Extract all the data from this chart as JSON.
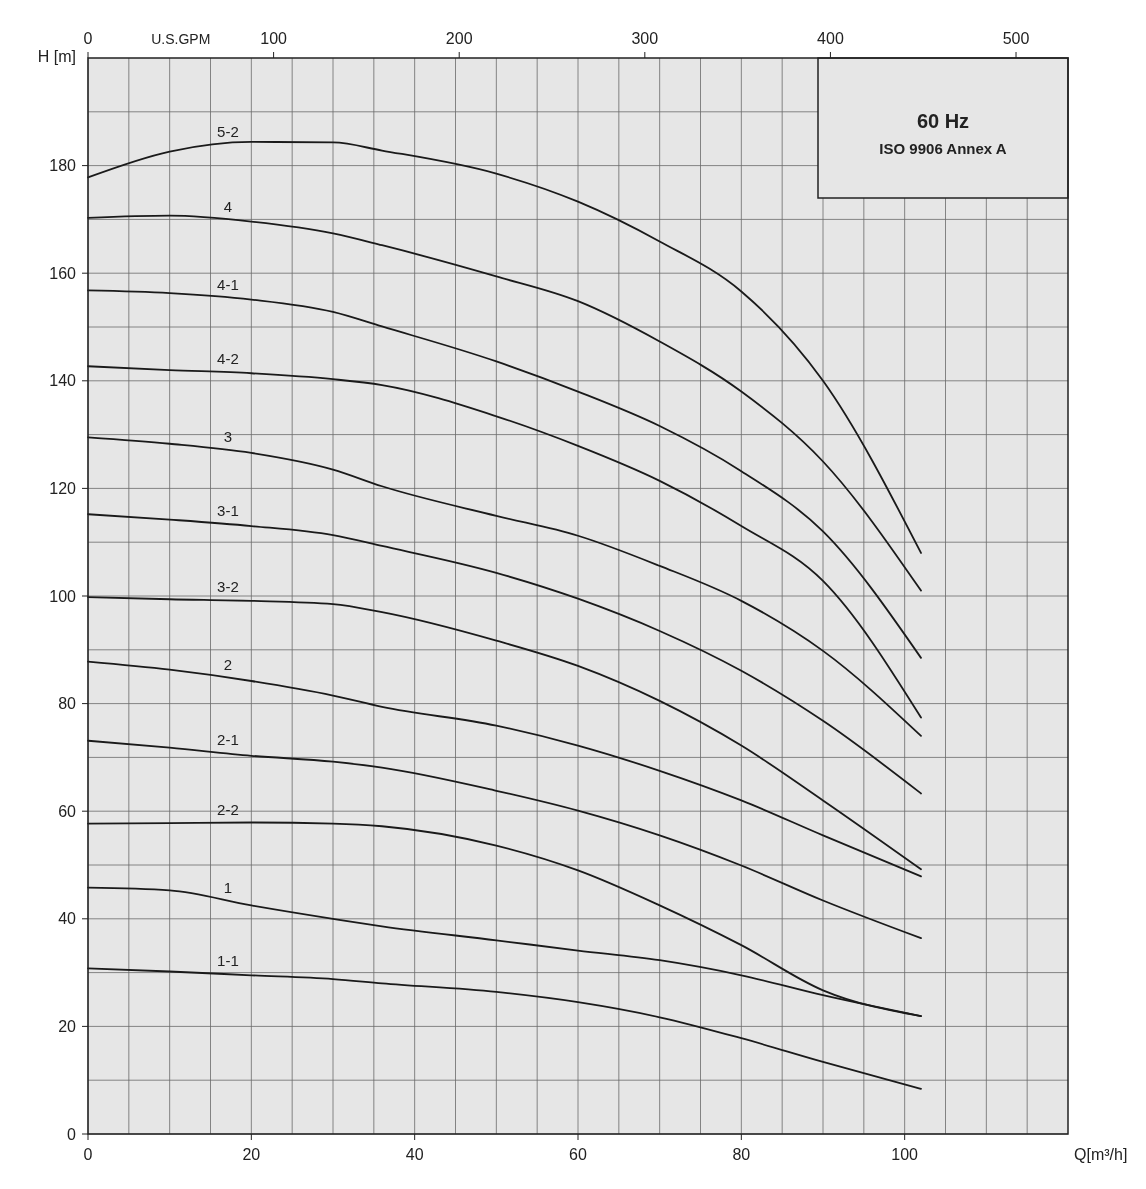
{
  "chart_data": {
    "type": "line",
    "xlabel": "Q[m³/h]",
    "ylabel": "H [m]",
    "x2label": "U.S.GPM",
    "annotations": [
      "60 Hz",
      "ISO 9906 Annex A"
    ],
    "x": [
      0,
      10,
      20,
      30,
      36,
      50,
      60,
      70,
      80,
      90,
      102
    ],
    "xlim": [
      0,
      120
    ],
    "xticks": [
      0,
      {
        "value": 5,
        "label": null
      },
      {
        "value": 10,
        "label": null
      },
      {
        "value": 15,
        "label": null
      },
      20,
      {
        "value": 25,
        "label": null
      },
      {
        "value": 30,
        "label": null
      },
      {
        "value": 35,
        "label": null
      },
      40,
      {
        "value": 45,
        "label": null
      },
      {
        "value": 50,
        "label": null
      },
      {
        "value": 55,
        "label": null
      },
      60,
      {
        "value": 65,
        "label": null
      },
      {
        "value": 70,
        "label": null
      },
      {
        "value": 75,
        "label": null
      },
      80,
      {
        "value": 85,
        "label": null
      },
      {
        "value": 90,
        "label": null
      },
      {
        "value": 95,
        "label": null
      },
      100,
      {
        "value": 105,
        "label": null
      },
      {
        "value": 110,
        "label": null
      },
      {
        "value": 115,
        "label": null
      }
    ],
    "x2lim": [
      0,
      528
    ],
    "x2ticks": [
      0,
      100,
      200,
      300,
      400,
      500
    ],
    "ylim": [
      0,
      200
    ],
    "yticks": [
      0,
      {
        "value": 10,
        "label": null
      },
      20,
      {
        "value": 30,
        "label": null
      },
      40,
      {
        "value": 50,
        "label": null
      },
      60,
      {
        "value": 70,
        "label": null
      },
      80,
      {
        "value": 90,
        "label": null
      },
      100,
      {
        "value": 110,
        "label": null
      },
      120,
      {
        "value": 130,
        "label": null
      },
      140,
      {
        "value": 150,
        "label": null
      },
      160,
      {
        "value": 170,
        "label": null
      },
      180,
      {
        "value": 190,
        "label": null
      }
    ],
    "grid": true,
    "marker": "none",
    "line_style": "solid",
    "series": [
      {
        "name": "5-2",
        "color": "#1a1a1a",
        "values": [
          177.8,
          182.6,
          184.4,
          184.3,
          182.8,
          178.5,
          173.3,
          165.9,
          156.6,
          140,
          108
        ]
      },
      {
        "name": "4",
        "color": "#1a1a1a",
        "values": [
          170.3,
          170.7,
          169.6,
          167.4,
          165.2,
          159.4,
          154.8,
          147.3,
          138,
          125,
          101
        ]
      },
      {
        "name": "4-1",
        "color": "#1a1a1a",
        "values": [
          156.8,
          156.3,
          155.1,
          152.8,
          150.1,
          143.6,
          138,
          131.6,
          123.2,
          112,
          88.5
        ]
      },
      {
        "name": "4-2",
        "color": "#1a1a1a",
        "values": [
          142.7,
          142,
          141.4,
          140.3,
          139.2,
          133.4,
          127.9,
          121.4,
          113,
          102.8,
          77.4
        ]
      },
      {
        "name": "3",
        "color": "#1a1a1a",
        "values": [
          129.5,
          128.3,
          126.6,
          123.5,
          120.4,
          114.9,
          111.2,
          105.6,
          99.1,
          89.8,
          74
        ]
      },
      {
        "name": "3-1",
        "color": "#1a1a1a",
        "values": [
          115.2,
          114.2,
          113,
          111.3,
          109.3,
          104.3,
          99.5,
          93.5,
          86.1,
          76.8,
          63.3
        ]
      },
      {
        "name": "3-2",
        "color": "#1a1a1a",
        "values": [
          99.8,
          99.4,
          99.1,
          98.5,
          97,
          91.7,
          87,
          80.5,
          72.2,
          62,
          49.2
        ]
      },
      {
        "name": "2",
        "color": "#1a1a1a",
        "values": [
          87.8,
          86.3,
          84.2,
          81.5,
          79.4,
          75.9,
          72.2,
          67.5,
          62,
          55.5,
          47.9
        ]
      },
      {
        "name": "2-1",
        "color": "#1a1a1a",
        "values": [
          73.1,
          71.8,
          70.3,
          69.2,
          68.1,
          63.8,
          60.1,
          55.5,
          49.9,
          43.4,
          36.4
        ]
      },
      {
        "name": "2-2",
        "color": "#1a1a1a",
        "values": [
          57.7,
          57.8,
          57.9,
          57.7,
          57.2,
          53.6,
          49,
          42.5,
          35.1,
          26.7,
          21.9
        ]
      },
      {
        "name": "1",
        "color": "#1a1a1a",
        "values": [
          45.8,
          45.3,
          42.5,
          40,
          38.6,
          36,
          34.1,
          32.3,
          29.5,
          25.8,
          21.9
        ]
      },
      {
        "name": "1-1",
        "color": "#1a1a1a",
        "values": [
          30.8,
          30.2,
          29.5,
          28.8,
          28,
          26.4,
          24.5,
          21.7,
          17.8,
          13.4,
          8.4
        ]
      }
    ]
  }
}
